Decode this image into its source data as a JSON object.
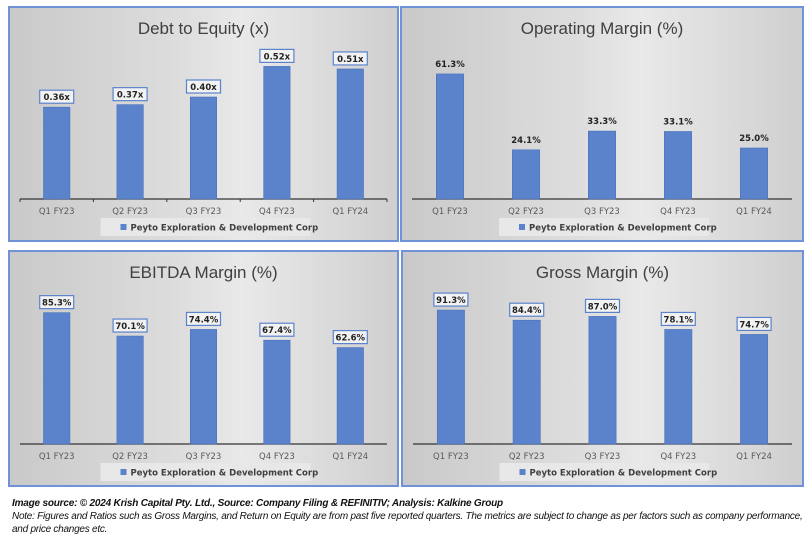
{
  "chart_data": [
    {
      "type": "bar",
      "title": "Debt to Equity (x)",
      "categories": [
        "Q1 FY23",
        "Q2 FY23",
        "Q3 FY23",
        "Q4 FY23",
        "Q1 FY24"
      ],
      "series": [
        {
          "name": "Peyto Exploration & Development Corp",
          "values": [
            0.36,
            0.37,
            0.4,
            0.52,
            0.51
          ]
        }
      ],
      "labels": [
        "0.36x",
        "0.37x",
        "0.40x",
        "0.52x",
        "0.51x"
      ],
      "label_boxed": true,
      "ylim": [
        0,
        0.6
      ],
      "xlabel": "",
      "ylabel": "",
      "grid": false,
      "legend": "bottom",
      "color": "#5b83cc"
    },
    {
      "type": "bar",
      "title": "Operating Margin (%)",
      "categories": [
        "Q1 FY23",
        "Q2 FY23",
        "Q3 FY23",
        "Q4 FY23",
        "Q1 FY24"
      ],
      "series": [
        {
          "name": "Peyto Exploration & Development Corp",
          "values": [
            61.3,
            24.1,
            33.3,
            33.1,
            25.0
          ]
        }
      ],
      "labels": [
        "61.3%",
        "24.1%",
        "33.3%",
        "33.1%",
        "25.0%"
      ],
      "label_boxed": false,
      "ylim": [
        0,
        75
      ],
      "xlabel": "",
      "ylabel": "",
      "grid": false,
      "legend": "bottom",
      "color": "#5b83cc"
    },
    {
      "type": "bar",
      "title": "EBITDA Margin (%)",
      "categories": [
        "Q1 FY23",
        "Q2 FY23",
        "Q3 FY23",
        "Q4 FY23",
        "Q1 FY24"
      ],
      "series": [
        {
          "name": "Peyto Exploration & Development Corp",
          "values": [
            85.3,
            70.1,
            74.4,
            67.4,
            62.6
          ]
        }
      ],
      "labels": [
        "85.3%",
        "70.1%",
        "74.4%",
        "67.4%",
        "62.6%"
      ],
      "label_boxed": true,
      "ylim": [
        0,
        100
      ],
      "xlabel": "",
      "ylabel": "",
      "grid": false,
      "legend": "bottom",
      "color": "#5b83cc"
    },
    {
      "type": "bar",
      "title": "Gross Margin (%)",
      "categories": [
        "Q1 FY23",
        "Q2 FY23",
        "Q3 FY23",
        "Q4 FY23",
        "Q1 FY24"
      ],
      "series": [
        {
          "name": "Peyto Exploration & Development Corp",
          "values": [
            91.3,
            84.4,
            87.0,
            78.1,
            74.7
          ]
        }
      ],
      "labels": [
        "91.3%",
        "84.4%",
        "87.0%",
        "78.1%",
        "74.7%"
      ],
      "label_boxed": true,
      "ylim": [
        0,
        105
      ],
      "xlabel": "",
      "ylabel": "",
      "grid": false,
      "legend": "bottom",
      "color": "#5b83cc"
    }
  ],
  "footer": {
    "source": "Image source: © 2024 Krish Capital Pty. Ltd., Source: Company Filing & REFINITIV; Analysis: Kalkine Group",
    "note": "Note: Figures and Ratios such as  Gross Margins, and Return on Equity are from past  five reported  quarters. The metrics are subject to change as per factors such as company performance, and price changes etc."
  }
}
